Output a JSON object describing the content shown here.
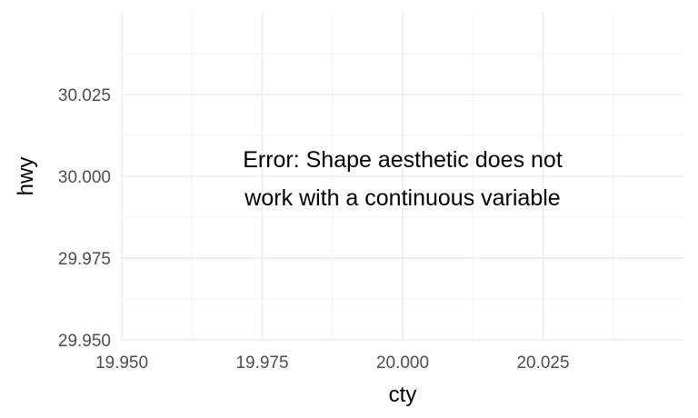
{
  "chart_data": {
    "type": "scatter",
    "title": "",
    "xlabel": "cty",
    "ylabel": "hwy",
    "xlim": [
      19.95,
      20.05
    ],
    "ylim": [
      29.95,
      30.05
    ],
    "x_ticks": [
      19.95,
      19.975,
      20.0,
      20.025
    ],
    "x_tick_labels": [
      "19.950",
      "19.975",
      "20.000",
      "20.025"
    ],
    "y_ticks": [
      29.95,
      29.975,
      30.0,
      30.025
    ],
    "y_tick_labels": [
      "29.950",
      "29.975",
      "30.000",
      "30.025"
    ],
    "grid": true,
    "series": [],
    "annotation": {
      "lines": [
        "Error: Shape aesthetic does not",
        "work with a continuous variable"
      ],
      "x": 20.0,
      "y": 30.0
    }
  }
}
